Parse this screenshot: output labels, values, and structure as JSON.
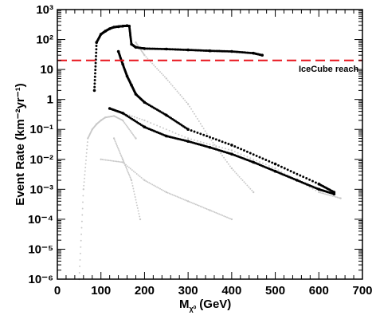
{
  "chart_data": {
    "type": "scatter",
    "xlabel": "M",
    "xlabel_sub": "χ⁰",
    "xlabel_unit": "(GeV)",
    "ylabel": "Event Rate (km⁻²yr⁻¹)",
    "xlim": [
      0,
      700
    ],
    "ylim_log10": [
      -6,
      3
    ],
    "y_scale": "log",
    "x_ticks": [
      "0",
      "100",
      "200",
      "300",
      "400",
      "500",
      "600",
      "700"
    ],
    "y_ticks": [
      "10⁻⁶",
      "10⁻⁵",
      "10⁻⁴",
      "10⁻³",
      "10⁻²",
      "10⁻¹",
      "1",
      "10",
      "10²",
      "10³"
    ],
    "reference_line": {
      "label": "IceCube reach",
      "y": 20,
      "color": "#e8141c"
    },
    "colors": {
      "black_series": "#000000",
      "gray_series": "#c8c8c8"
    },
    "series": [
      {
        "color": "black",
        "x": [
          85,
          90,
          100,
          110,
          120,
          130,
          140,
          150,
          160,
          165,
          170,
          180,
          200,
          250,
          300,
          350,
          400,
          450,
          470
        ],
        "y": [
          2,
          80,
          150,
          190,
          230,
          260,
          270,
          280,
          290,
          280,
          70,
          55,
          50,
          48,
          45,
          42,
          40,
          35,
          30
        ]
      },
      {
        "color": "black",
        "x": [
          140,
          150,
          160,
          170,
          180,
          200,
          250,
          300,
          400,
          500,
          600,
          635
        ],
        "y": [
          40,
          15,
          6,
          3,
          1.5,
          0.8,
          0.3,
          0.1,
          0.03,
          0.007,
          0.0015,
          0.0008
        ]
      },
      {
        "color": "black",
        "x": [
          120,
          150,
          200,
          250,
          300,
          350,
          400,
          450,
          500,
          550,
          600,
          635
        ],
        "y": [
          0.5,
          0.35,
          0.12,
          0.06,
          0.04,
          0.025,
          0.015,
          0.008,
          0.004,
          0.002,
          0.001,
          0.0007
        ]
      },
      {
        "color": "gray",
        "x": [
          50,
          60,
          70,
          80,
          90,
          100,
          110,
          130,
          150,
          180
        ],
        "y": [
          1e-06,
          0.001,
          0.05,
          0.1,
          0.15,
          0.2,
          0.25,
          0.28,
          0.2,
          0.05
        ]
      },
      {
        "color": "gray",
        "x": [
          180,
          200,
          250,
          300,
          350,
          400,
          450
        ],
        "y": [
          80,
          30,
          5,
          0.7,
          0.05,
          0.005,
          0.0008
        ]
      },
      {
        "color": "gray",
        "x": [
          100,
          150,
          200,
          250,
          300,
          350,
          400
        ],
        "y": [
          0.01,
          0.008,
          0.002,
          0.0008,
          0.0004,
          0.0002,
          0.0001
        ]
      },
      {
        "color": "gray",
        "x": [
          130,
          150,
          170,
          190
        ],
        "y": [
          0.05,
          0.01,
          0.002,
          0.0001
        ]
      },
      {
        "color": "gray",
        "x": [
          120,
          200,
          300,
          400,
          500,
          600,
          650
        ],
        "y": [
          0.5,
          0.2,
          0.05,
          0.02,
          0.005,
          0.0008,
          0.0005
        ]
      }
    ]
  }
}
